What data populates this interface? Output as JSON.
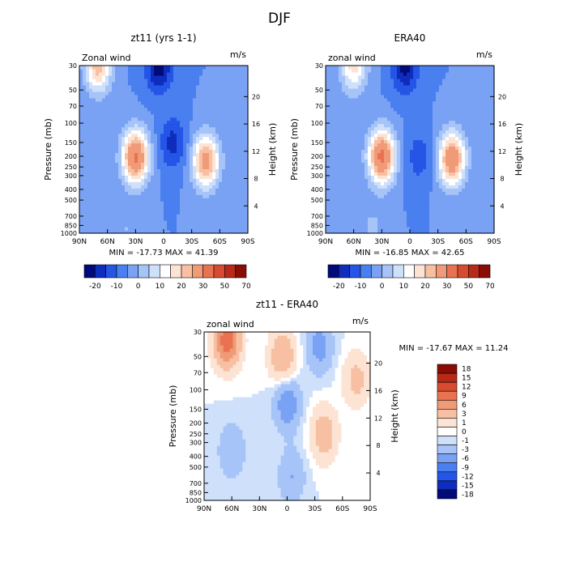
{
  "figure_title": "DJF",
  "palettes": {
    "full": [
      "#000a7a",
      "#0f2dbd",
      "#2455e6",
      "#4a7ff0",
      "#7aa2f4",
      "#a7c4f8",
      "#cfe0fb",
      "#ffffff",
      "#fde3d3",
      "#f7c0a3",
      "#f09a77",
      "#e97350",
      "#d74b30",
      "#b72a17",
      "#8a0d05"
    ],
    "diff": [
      "#000a7a",
      "#0f2dbd",
      "#2455e6",
      "#4a7ff0",
      "#7aa2f4",
      "#a7c4f8",
      "#cfe0fb",
      "#ffffff",
      "#fde3d3",
      "#f7c0a3",
      "#f09a77",
      "#e97350",
      "#d74b30",
      "#b72a17",
      "#8a0d05"
    ]
  },
  "chart_data": [
    {
      "type": "heatmap",
      "title": "zt11 (yrs 1-1)",
      "left_label": "Zonal wind",
      "right_label": "m/s",
      "xlabel": "",
      "ylabel": "Pressure (mb)",
      "y2label": "Height (km)",
      "x_ticks": [
        "90N",
        "60N",
        "30N",
        "0",
        "30S",
        "60S",
        "90S"
      ],
      "p_ticks": [
        "30",
        "50",
        "70",
        "100",
        "150",
        "200",
        "250",
        "300",
        "400",
        "500",
        "700",
        "850",
        "1000"
      ],
      "h_ticks": [
        "4",
        "8",
        "12",
        "16",
        "20"
      ],
      "stats": "MIN = -17.73   MAX =  41.39",
      "colorbar_labels": [
        "-20",
        "-10",
        "0",
        "10",
        "20",
        "30",
        "50",
        "70"
      ],
      "levels": [
        -20,
        -15,
        -10,
        -5,
        0,
        5,
        10,
        15,
        20,
        25,
        30,
        40,
        50,
        60,
        70
      ],
      "features": [
        {
          "lat": 30,
          "p": 200,
          "peak": 41.4
        },
        {
          "lat": -45,
          "p": 220,
          "peak": 34
        },
        {
          "lat": 70,
          "p": 30,
          "peak": 28
        },
        {
          "lat": 5,
          "p": 30,
          "peak": -17.7
        },
        {
          "lat": -10,
          "p": 150,
          "peak": -12
        },
        {
          "lat": 40,
          "p": 900,
          "peak": 5
        }
      ]
    },
    {
      "type": "heatmap",
      "title": "ERA40",
      "left_label": "zonal wind",
      "right_label": "m/s",
      "xlabel": "",
      "ylabel": "Pressure (mb)",
      "y2label": "Height (km)",
      "x_ticks": [
        "90N",
        "60N",
        "30N",
        "0",
        "30S",
        "60S",
        "90S"
      ],
      "p_ticks": [
        "30",
        "50",
        "70",
        "100",
        "150",
        "200",
        "250",
        "300",
        "400",
        "500",
        "700",
        "850",
        "1000"
      ],
      "h_ticks": [
        "4",
        "8",
        "12",
        "16",
        "20"
      ],
      "stats": "MIN = -16.85   MAX =  42.65",
      "colorbar_labels": [
        "-20",
        "-10",
        "0",
        "10",
        "20",
        "30",
        "50",
        "70"
      ],
      "levels": [
        -20,
        -15,
        -10,
        -5,
        0,
        5,
        10,
        15,
        20,
        25,
        30,
        40,
        50,
        60,
        70
      ],
      "features": [
        {
          "lat": 30,
          "p": 200,
          "peak": 42.6
        },
        {
          "lat": -45,
          "p": 210,
          "peak": 38
        },
        {
          "lat": 60,
          "p": 30,
          "peak": 22
        },
        {
          "lat": 5,
          "p": 30,
          "peak": -16.8
        },
        {
          "lat": -10,
          "p": 200,
          "peak": -8
        },
        {
          "lat": 40,
          "p": 900,
          "peak": 6
        }
      ]
    },
    {
      "type": "heatmap",
      "title": "zt11 - ERA40",
      "left_label": "zonal wind",
      "right_label": "m/s",
      "xlabel": "",
      "ylabel": "Pressure (mb)",
      "y2label": "Height (km)",
      "x_ticks": [
        "90N",
        "60N",
        "30N",
        "0",
        "30S",
        "60S",
        "90S"
      ],
      "p_ticks": [
        "30",
        "50",
        "70",
        "100",
        "150",
        "200",
        "250",
        "300",
        "400",
        "500",
        "700",
        "850",
        "1000"
      ],
      "h_ticks": [
        "4",
        "8",
        "12",
        "16",
        "20"
      ],
      "stats": "MIN = -17.67   MAX =  11.24",
      "colorbar_labels": [
        "18",
        "15",
        "12",
        "9",
        "6",
        "3",
        "1",
        "0",
        "-1",
        "-3",
        "-6",
        "-9",
        "-12",
        "-15",
        "-18"
      ],
      "levels": [
        -18,
        -15,
        -12,
        -9,
        -6,
        -3,
        -1,
        0,
        1,
        3,
        6,
        9,
        12,
        15,
        18
      ],
      "features": [
        {
          "lat": 65,
          "p": 35,
          "peak": 11.2
        },
        {
          "lat": 5,
          "p": 50,
          "peak": 6
        },
        {
          "lat": -40,
          "p": 250,
          "peak": 5
        },
        {
          "lat": -75,
          "p": 80,
          "peak": 4
        },
        {
          "lat": 0,
          "p": 130,
          "peak": -5
        },
        {
          "lat": 60,
          "p": 350,
          "peak": -3
        },
        {
          "lat": -35,
          "p": 40,
          "peak": -4
        },
        {
          "lat": -5,
          "p": 600,
          "peak": -3
        }
      ]
    }
  ]
}
